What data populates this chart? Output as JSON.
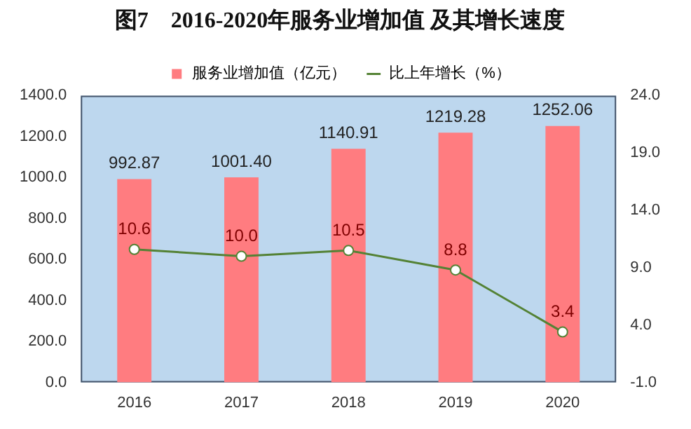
{
  "chart_data": {
    "type": "bar",
    "title": "图7　2016-2020年服务业增加值 及其增长速度",
    "categories": [
      "2016",
      "2017",
      "2018",
      "2019",
      "2020"
    ],
    "series": [
      {
        "name": "服务业增加值（亿元）",
        "color": "#ff7c80",
        "values": [
          992.87,
          1001.4,
          1140.91,
          1219.28,
          1252.06
        ],
        "value_labels": [
          "992.87",
          "1001.40",
          "1140.91",
          "1219.28",
          "1252.06"
        ]
      },
      {
        "name": "比上年增长（%）",
        "type": "line",
        "axis": "y2",
        "color": "#548235",
        "values": [
          10.6,
          10.0,
          10.5,
          8.8,
          3.4
        ],
        "value_labels": [
          "10.6",
          "10.0",
          "10.5",
          "8.8",
          "3.4"
        ],
        "marker": "circle"
      }
    ],
    "ylim": [
      0,
      1400
    ],
    "yticks": [
      {
        "value": 0,
        "label": "0.0"
      },
      {
        "value": 200,
        "label": "200.0"
      },
      {
        "value": 400,
        "label": "400.0"
      },
      {
        "value": 600,
        "label": "600.0"
      },
      {
        "value": 800,
        "label": "800.0"
      },
      {
        "value": 1000,
        "label": "1000.0"
      },
      {
        "value": 1200,
        "label": "1200.0"
      },
      {
        "value": 1400,
        "label": "1400.0"
      }
    ],
    "y2lim": [
      -1,
      24
    ],
    "y2ticks": [
      {
        "value": -1,
        "label": "-1.0"
      },
      {
        "value": 4,
        "label": "4.0"
      },
      {
        "value": 9,
        "label": "9.0"
      },
      {
        "value": 14,
        "label": "14.0"
      },
      {
        "value": 19,
        "label": "19.0"
      },
      {
        "value": 24,
        "label": "24.0"
      }
    ],
    "grid": false,
    "legend": "top"
  }
}
